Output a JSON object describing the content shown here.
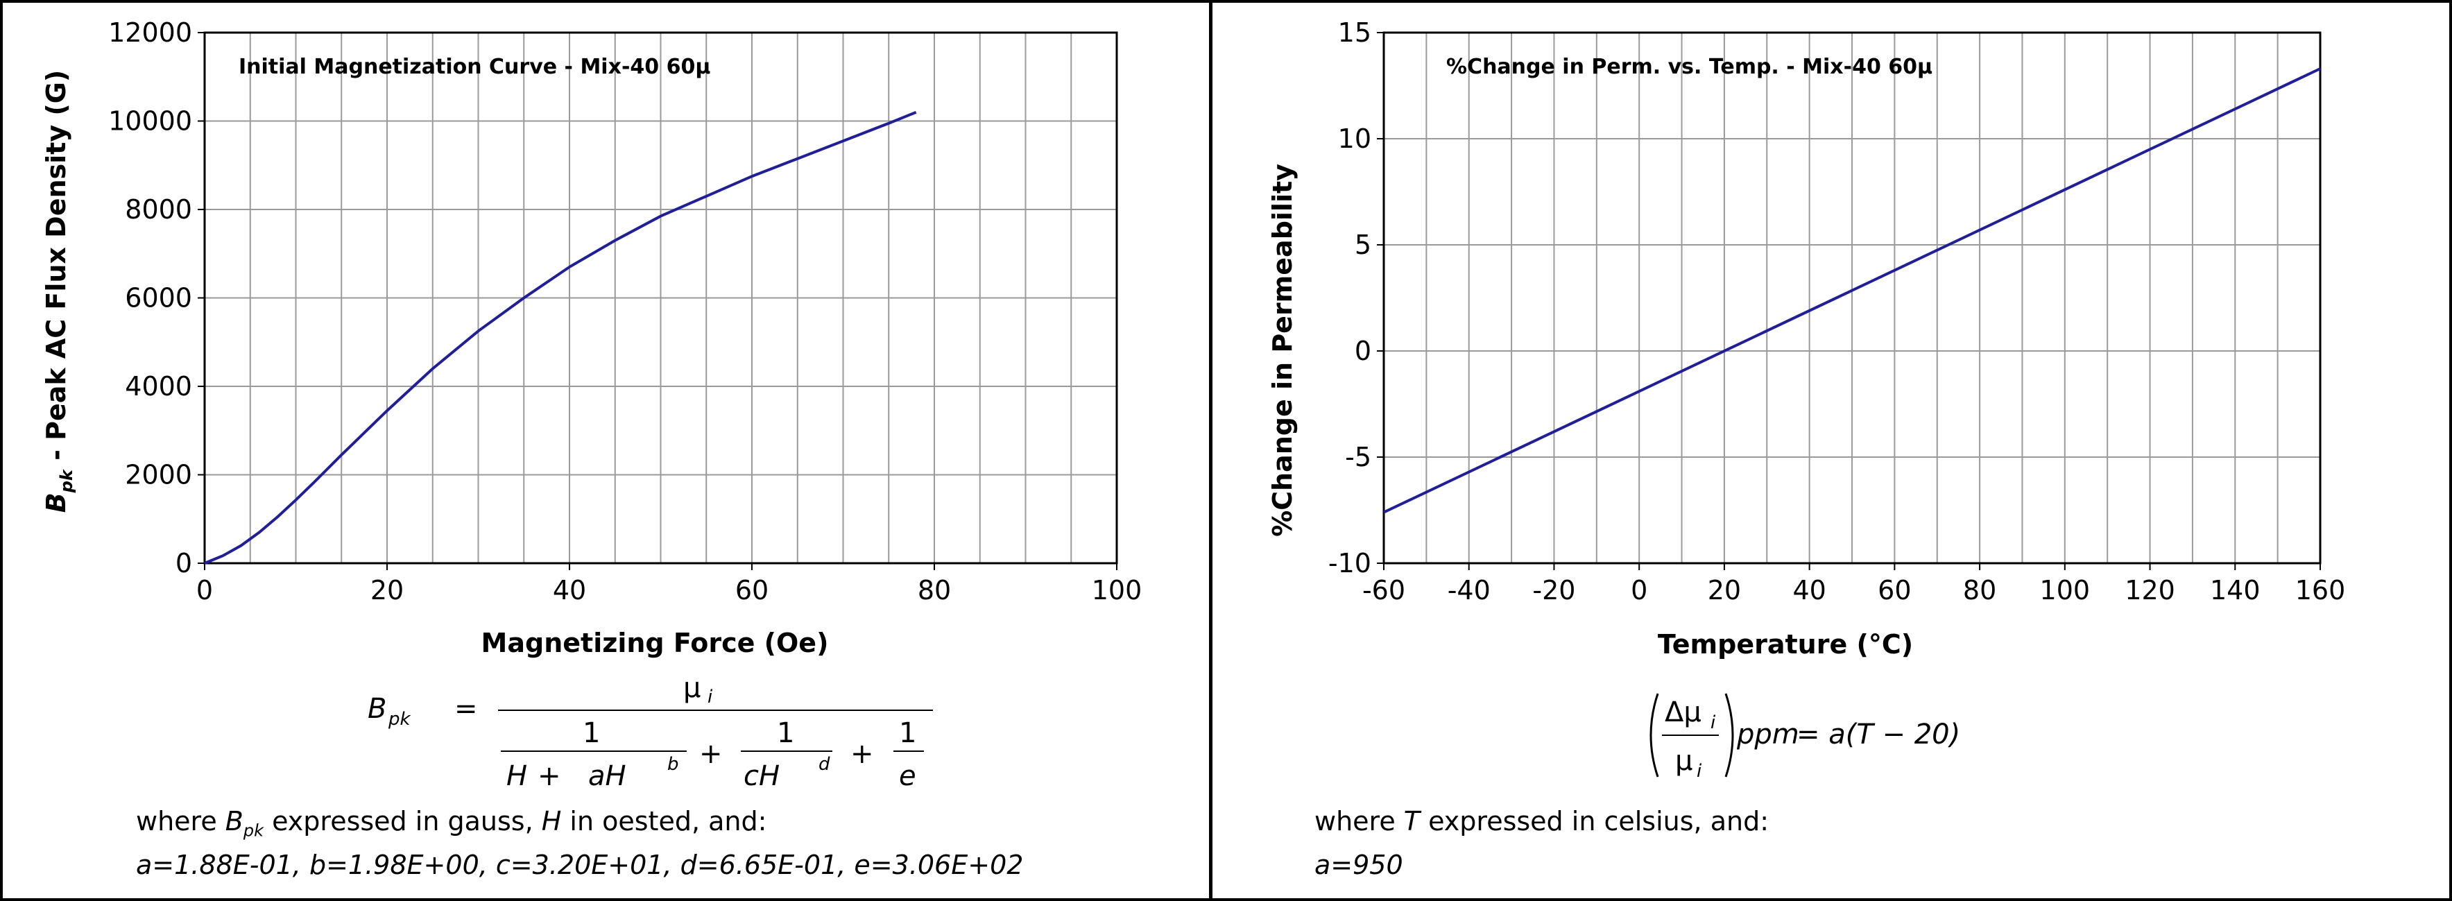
{
  "chart_data": [
    {
      "type": "line",
      "title": "Initial Magnetization Curve - Mix-40  60µ",
      "xlabel": "Magnetizing Force (Oe)",
      "ylabel_main": "B",
      "ylabel_sub": "pk",
      "ylabel_rest": " - Peak AC Flux Density (G)",
      "xlim": [
        0,
        100
      ],
      "ylim": [
        0,
        12000
      ],
      "xticks": [
        "0",
        "20",
        "40",
        "60",
        "80",
        "100"
      ],
      "yticks": [
        "0",
        "2000",
        "4000",
        "6000",
        "8000",
        "10000",
        "12000"
      ],
      "grid": true,
      "series_color": "#1f1f9a",
      "series": [
        {
          "x": [
            0,
            2,
            4,
            6,
            8,
            10,
            12,
            15,
            20,
            25,
            30,
            35,
            40,
            45,
            50,
            55,
            60,
            65,
            70,
            75,
            78
          ],
          "values": [
            0,
            170,
            400,
            700,
            1050,
            1430,
            1830,
            2450,
            3450,
            4400,
            5250,
            6000,
            6700,
            7300,
            7850,
            8300,
            8750,
            9150,
            9550,
            9950,
            10200
          ]
        }
      ]
    },
    {
      "type": "line",
      "title": "%Change in Perm. vs. Temp. - Mix-40  60µ",
      "xlabel": "Temperature (°C)",
      "ylabel": "%Change in Permeability",
      "xlim": [
        -60,
        160
      ],
      "ylim": [
        -10,
        15
      ],
      "xticks": [
        "-60",
        "-40",
        "-20",
        "0",
        "20",
        "40",
        "60",
        "80",
        "100",
        "120",
        "140",
        "160"
      ],
      "yticks": [
        "-10",
        "-5",
        "0",
        "5",
        "10",
        "15"
      ],
      "grid": true,
      "series_color": "#1f1f9a",
      "series": [
        {
          "x": [
            -60,
            160
          ],
          "values": [
            -7.6,
            13.3
          ]
        }
      ]
    }
  ],
  "equations": {
    "left": {
      "lhs": "B",
      "lhs_sub": "pk",
      "equals": "=",
      "numerator": "µ",
      "numerator_sub": "i",
      "term1_num": "1",
      "term1_den_a": "H",
      "term1_den_plus": "+",
      "term1_den_b": "aH",
      "term1_den_exp": "b",
      "plus1": "+",
      "term2_num": "1",
      "term2_den": "cH",
      "term2_den_exp": "d",
      "plus2": "+",
      "term3_num": "1",
      "term3_den": "e"
    },
    "right": {
      "delta": "Δµ",
      "delta_sub": "i",
      "den": "µ",
      "den_sub": "i",
      "ppm": "ppm",
      "rhs": "= a(T − 20)"
    }
  },
  "notes": {
    "left_line1_pre": "where ",
    "left_line1_b": "B",
    "left_line1_sub": "pk",
    "left_line1_mid": " expressed in gauss, ",
    "left_line1_h": "H",
    "left_line1_post": " in oested, and:",
    "left_line2": "a=1.88E-01,  b=1.98E+00,  c=3.20E+01,  d=6.65E-01,  e=3.06E+02",
    "right_line1_pre": "where ",
    "right_line1_t": "T",
    "right_line1_post": " expressed in celsius, and:",
    "right_line2": "a=950"
  }
}
